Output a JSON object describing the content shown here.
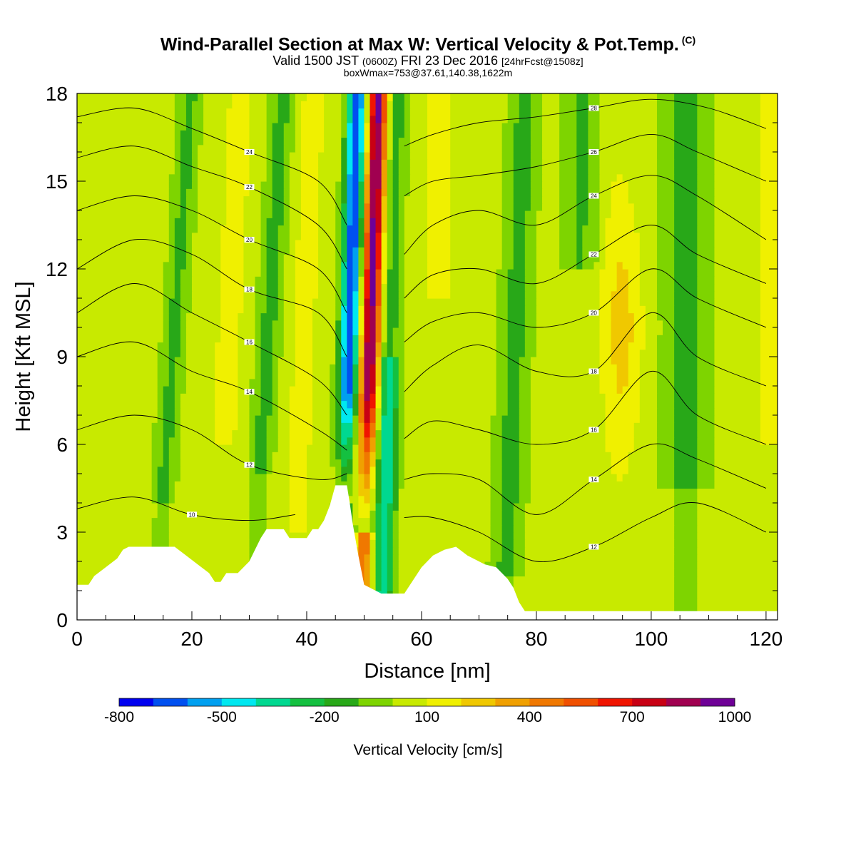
{
  "header": {
    "title": "Wind-Parallel Section at Max W: Vertical Velocity & Pot.Temp.",
    "title_mark": "(C)",
    "valid_a": "Valid 1500 JST",
    "valid_b": "(0600Z)",
    "valid_c": "FRI 23 Dec 2016",
    "valid_d": "[24hrFcst@1508z]",
    "box": "boxWmax=753@37.61,140.38,1622m"
  },
  "chart_data": {
    "type": "heatmap",
    "xlabel": "Distance [nm]",
    "ylabel": "Height [Kft MSL]",
    "xlim": [
      0,
      122
    ],
    "ylim": [
      0,
      18
    ],
    "xticks": [
      "0",
      "20",
      "40",
      "60",
      "80",
      "100",
      "120"
    ],
    "yticks": [
      "0",
      "3",
      "6",
      "9",
      "12",
      "15",
      "18"
    ],
    "colorbar": {
      "label": "Vertical Velocity [cm/s]",
      "tick_labels": [
        "-800",
        "-500",
        "-200",
        "100",
        "400",
        "700",
        "1000"
      ],
      "levels": [
        -800,
        -700,
        -600,
        -500,
        -400,
        -300,
        -200,
        -100,
        0,
        100,
        200,
        300,
        400,
        500,
        600,
        700,
        800,
        900,
        1000
      ],
      "colors": [
        "#0000f0",
        "#0050f0",
        "#00a0f0",
        "#00e8f0",
        "#00d890",
        "#14c040",
        "#28a818",
        "#7ed400",
        "#c8ea00",
        "#f0f000",
        "#f0c800",
        "#f0a000",
        "#f07800",
        "#f05000",
        "#f01400",
        "#c80014",
        "#a00050",
        "#6e0096"
      ]
    },
    "terrain_kft": [
      [
        0,
        1.2
      ],
      [
        2,
        1.2
      ],
      [
        3,
        1.5
      ],
      [
        5,
        1.8
      ],
      [
        7,
        2.1
      ],
      [
        8,
        2.4
      ],
      [
        9,
        2.5
      ],
      [
        17,
        2.5
      ],
      [
        19,
        2.2
      ],
      [
        21,
        1.9
      ],
      [
        23,
        1.6
      ],
      [
        24,
        1.3
      ],
      [
        25,
        1.3
      ],
      [
        26,
        1.6
      ],
      [
        28,
        1.6
      ],
      [
        30,
        2.0
      ],
      [
        31,
        2.4
      ],
      [
        32,
        2.8
      ],
      [
        33,
        3.1
      ],
      [
        36,
        3.1
      ],
      [
        37,
        2.8
      ],
      [
        40,
        2.8
      ],
      [
        41,
        3.1
      ],
      [
        42,
        3.1
      ],
      [
        43,
        3.4
      ],
      [
        44,
        3.9
      ],
      [
        45,
        4.6
      ],
      [
        47,
        4.6
      ],
      [
        47.5,
        4.0
      ],
      [
        48,
        3.3
      ],
      [
        49,
        2.2
      ],
      [
        50,
        1.2
      ],
      [
        53,
        0.9
      ],
      [
        57,
        0.9
      ],
      [
        58,
        1.2
      ],
      [
        60,
        1.8
      ],
      [
        62,
        2.2
      ],
      [
        64,
        2.4
      ],
      [
        66,
        2.5
      ],
      [
        68,
        2.2
      ],
      [
        71,
        1.9
      ],
      [
        73,
        1.8
      ],
      [
        75,
        1.4
      ],
      [
        76,
        1.1
      ],
      [
        77,
        0.6
      ],
      [
        78,
        0.3
      ],
      [
        122,
        0.3
      ]
    ],
    "isentropes": [
      {
        "label": "10",
        "points": [
          [
            0,
            3.8
          ],
          [
            10,
            4.2
          ],
          [
            20,
            3.6
          ],
          [
            30,
            3.4
          ],
          [
            38,
            3.6
          ]
        ]
      },
      {
        "label": "12",
        "points": [
          [
            0,
            6.5
          ],
          [
            10,
            7.0
          ],
          [
            20,
            6.5
          ],
          [
            30,
            5.3
          ],
          [
            42,
            4.8
          ],
          [
            47,
            5.0
          ]
        ]
      },
      {
        "label": "14",
        "points": [
          [
            0,
            9.0
          ],
          [
            10,
            9.5
          ],
          [
            20,
            8.5
          ],
          [
            30,
            7.8
          ],
          [
            42,
            6.5
          ],
          [
            47,
            5.8
          ]
        ]
      },
      {
        "label": "16",
        "points": [
          [
            0,
            10.5
          ],
          [
            10,
            11.5
          ],
          [
            20,
            10.5
          ],
          [
            30,
            9.5
          ],
          [
            42,
            8.2
          ],
          [
            47,
            7.0
          ]
        ]
      },
      {
        "label": "18",
        "points": [
          [
            0,
            12.0
          ],
          [
            10,
            13.0
          ],
          [
            20,
            12.5
          ],
          [
            30,
            11.3
          ],
          [
            42,
            10.5
          ],
          [
            47,
            9.0
          ]
        ]
      },
      {
        "label": "20",
        "points": [
          [
            0,
            14.0
          ],
          [
            10,
            14.5
          ],
          [
            20,
            14.0
          ],
          [
            30,
            13.0
          ],
          [
            42,
            12.0
          ],
          [
            47,
            10.5
          ]
        ]
      },
      {
        "label": "22",
        "points": [
          [
            0,
            15.8
          ],
          [
            10,
            16.2
          ],
          [
            20,
            15.5
          ],
          [
            30,
            14.8
          ],
          [
            42,
            13.5
          ],
          [
            47,
            12.0
          ]
        ]
      },
      {
        "label": "24",
        "points": [
          [
            0,
            17.2
          ],
          [
            10,
            17.5
          ],
          [
            20,
            16.8
          ],
          [
            30,
            16.0
          ],
          [
            42,
            15.0
          ],
          [
            47,
            13.5
          ]
        ]
      },
      {
        "label": "12",
        "points": [
          [
            57,
            3.5
          ],
          [
            62,
            3.5
          ],
          [
            70,
            3.0
          ],
          [
            80,
            2.0
          ],
          [
            90,
            2.5
          ],
          [
            100,
            3.5
          ],
          [
            108,
            4.0
          ],
          [
            120,
            3.0
          ]
        ]
      },
      {
        "label": "14",
        "points": [
          [
            57,
            4.8
          ],
          [
            62,
            5.0
          ],
          [
            70,
            4.8
          ],
          [
            80,
            3.6
          ],
          [
            90,
            4.8
          ],
          [
            100,
            6.0
          ],
          [
            108,
            5.5
          ],
          [
            120,
            4.5
          ]
        ]
      },
      {
        "label": "16",
        "points": [
          [
            57,
            6.2
          ],
          [
            62,
            6.8
          ],
          [
            70,
            6.5
          ],
          [
            80,
            6.0
          ],
          [
            90,
            6.5
          ],
          [
            100,
            8.5
          ],
          [
            108,
            7.0
          ],
          [
            120,
            6.0
          ]
        ]
      },
      {
        "label": "18",
        "points": [
          [
            57,
            7.8
          ],
          [
            62,
            8.7
          ],
          [
            70,
            9.4
          ],
          [
            80,
            8.5
          ],
          [
            90,
            8.5
          ],
          [
            100,
            10.5
          ],
          [
            108,
            9.0
          ],
          [
            120,
            8.0
          ]
        ]
      },
      {
        "label": "20",
        "points": [
          [
            57,
            9.5
          ],
          [
            62,
            10.2
          ],
          [
            70,
            10.5
          ],
          [
            80,
            10.0
          ],
          [
            90,
            10.5
          ],
          [
            100,
            12.0
          ],
          [
            108,
            11.0
          ],
          [
            120,
            10.0
          ]
        ]
      },
      {
        "label": "22",
        "points": [
          [
            57,
            11.0
          ],
          [
            62,
            11.8
          ],
          [
            70,
            12.0
          ],
          [
            80,
            11.5
          ],
          [
            90,
            12.5
          ],
          [
            100,
            13.5
          ],
          [
            108,
            12.5
          ],
          [
            120,
            11.5
          ]
        ]
      },
      {
        "label": "24",
        "points": [
          [
            57,
            12.5
          ],
          [
            62,
            13.5
          ],
          [
            70,
            14.0
          ],
          [
            80,
            13.5
          ],
          [
            90,
            14.5
          ],
          [
            100,
            15.2
          ],
          [
            108,
            14.5
          ],
          [
            120,
            13.0
          ]
        ]
      },
      {
        "label": "26",
        "points": [
          [
            57,
            14.5
          ],
          [
            62,
            15.0
          ],
          [
            70,
            15.2
          ],
          [
            80,
            15.5
          ],
          [
            90,
            16.0
          ],
          [
            100,
            16.6
          ],
          [
            108,
            16.0
          ],
          [
            120,
            15.0
          ]
        ]
      },
      {
        "label": "28",
        "points": [
          [
            57,
            16.2
          ],
          [
            62,
            16.6
          ],
          [
            70,
            17.0
          ],
          [
            80,
            17.2
          ],
          [
            90,
            17.5
          ],
          [
            100,
            17.8
          ],
          [
            110,
            17.5
          ],
          [
            120,
            16.8
          ]
        ]
      }
    ]
  }
}
